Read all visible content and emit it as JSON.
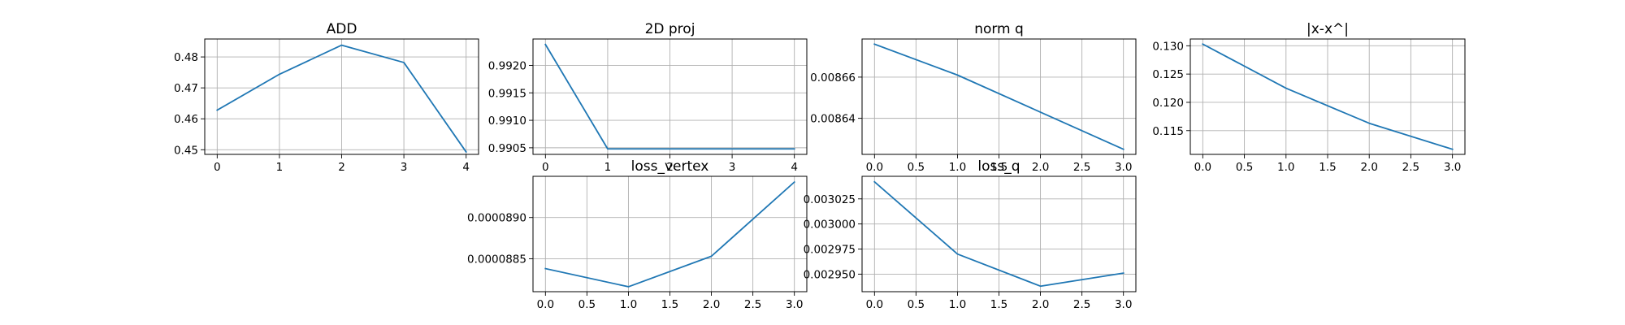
{
  "figure": {
    "background": "#ffffff",
    "line_color": "#1f77b4",
    "grid": true
  },
  "chart_data": [
    {
      "id": "add",
      "type": "line",
      "title": "ADD",
      "x": [
        0,
        1,
        2,
        3,
        4
      ],
      "y": [
        0.4628,
        0.4744,
        0.4838,
        0.4782,
        0.4493
      ],
      "xlim": [
        -0.2,
        4.2
      ],
      "ylim": [
        0.4485,
        0.4858
      ],
      "xticks": [
        0,
        1,
        2,
        3,
        4
      ],
      "xtick_labels": [
        "0",
        "1",
        "2",
        "3",
        "4"
      ],
      "yticks": [
        0.45,
        0.46,
        0.47,
        0.48
      ],
      "ytick_labels": [
        "0.45",
        "0.46",
        "0.47",
        "0.48"
      ],
      "xlabel": "",
      "ylabel": ""
    },
    {
      "id": "proj2d",
      "type": "line",
      "title": "2D proj",
      "x": [
        0,
        1,
        2,
        3,
        4
      ],
      "y": [
        0.99238,
        0.99048,
        0.99048,
        0.99048,
        0.99048
      ],
      "xlim": [
        -0.2,
        4.2
      ],
      "ylim": [
        0.99038,
        0.99248
      ],
      "xticks": [
        0,
        1,
        2,
        3,
        4
      ],
      "xtick_labels": [
        "0",
        "1",
        "2",
        "3",
        "4"
      ],
      "yticks": [
        0.9905,
        0.991,
        0.9915,
        0.992
      ],
      "ytick_labels": [
        "0.9905",
        "0.9910",
        "0.9915",
        "0.9920"
      ],
      "xlabel": "",
      "ylabel": ""
    },
    {
      "id": "normq",
      "type": "line",
      "title": "norm q",
      "x": [
        0,
        1,
        2,
        3
      ],
      "y": [
        0.008676,
        0.008661,
        0.008643,
        0.008625
      ],
      "xlim": [
        -0.15,
        3.15
      ],
      "ylim": [
        0.0086225,
        0.0086785
      ],
      "xticks": [
        0,
        0.5,
        1,
        1.5,
        2,
        2.5,
        3
      ],
      "xtick_labels": [
        "0.0",
        "0.5",
        "1.0",
        "1.5",
        "2.0",
        "2.5",
        "3.0"
      ],
      "yticks": [
        0.00864,
        0.00866
      ],
      "ytick_labels": [
        "0.00864",
        "0.00866"
      ],
      "xlabel": "",
      "ylabel": ""
    },
    {
      "id": "xdiff",
      "type": "line",
      "title": "|x-x^|",
      "x": [
        0,
        1,
        2,
        3
      ],
      "y": [
        0.1303,
        0.1225,
        0.1163,
        0.1117
      ],
      "xlim": [
        -0.15,
        3.15
      ],
      "ylim": [
        0.1108,
        0.1312
      ],
      "xticks": [
        0,
        0.5,
        1,
        1.5,
        2,
        2.5,
        3
      ],
      "xtick_labels": [
        "0.0",
        "0.5",
        "1.0",
        "1.5",
        "2.0",
        "2.5",
        "3.0"
      ],
      "yticks": [
        0.115,
        0.12,
        0.125,
        0.13
      ],
      "ytick_labels": [
        "0.115",
        "0.120",
        "0.125",
        "0.130"
      ],
      "xlabel": "",
      "ylabel": ""
    },
    {
      "id": "lossvertex",
      "type": "line",
      "title": "loss_vertex",
      "x": [
        0,
        1,
        2,
        3
      ],
      "y": [
        8.838e-05,
        8.816e-05,
        8.853e-05,
        8.943e-05
      ],
      "xlim": [
        -0.15,
        3.15
      ],
      "ylim": [
        8.81e-05,
        8.95e-05
      ],
      "xticks": [
        0,
        0.5,
        1,
        1.5,
        2,
        2.5,
        3
      ],
      "xtick_labels": [
        "0.0",
        "0.5",
        "1.0",
        "1.5",
        "2.0",
        "2.5",
        "3.0"
      ],
      "yticks": [
        8.85e-05,
        8.9e-05
      ],
      "ytick_labels": [
        "0.0000885",
        "0.0000890"
      ],
      "xlabel": "",
      "ylabel": ""
    },
    {
      "id": "lossq",
      "type": "line",
      "title": "loss_q",
      "x": [
        0,
        1,
        2,
        3
      ],
      "y": [
        0.003042,
        0.00297,
        0.002938,
        0.002951
      ],
      "xlim": [
        -0.15,
        3.15
      ],
      "ylim": [
        0.0029325,
        0.0030475
      ],
      "xticks": [
        0,
        0.5,
        1,
        1.5,
        2,
        2.5,
        3
      ],
      "xtick_labels": [
        "0.0",
        "0.5",
        "1.0",
        "1.5",
        "2.0",
        "2.5",
        "3.0"
      ],
      "yticks": [
        0.00295,
        0.002975,
        0.003,
        0.003025
      ],
      "ytick_labels": [
        "0.002950",
        "0.002975",
        "0.003000",
        "0.003025"
      ],
      "xlabel": "",
      "ylabel": ""
    }
  ]
}
